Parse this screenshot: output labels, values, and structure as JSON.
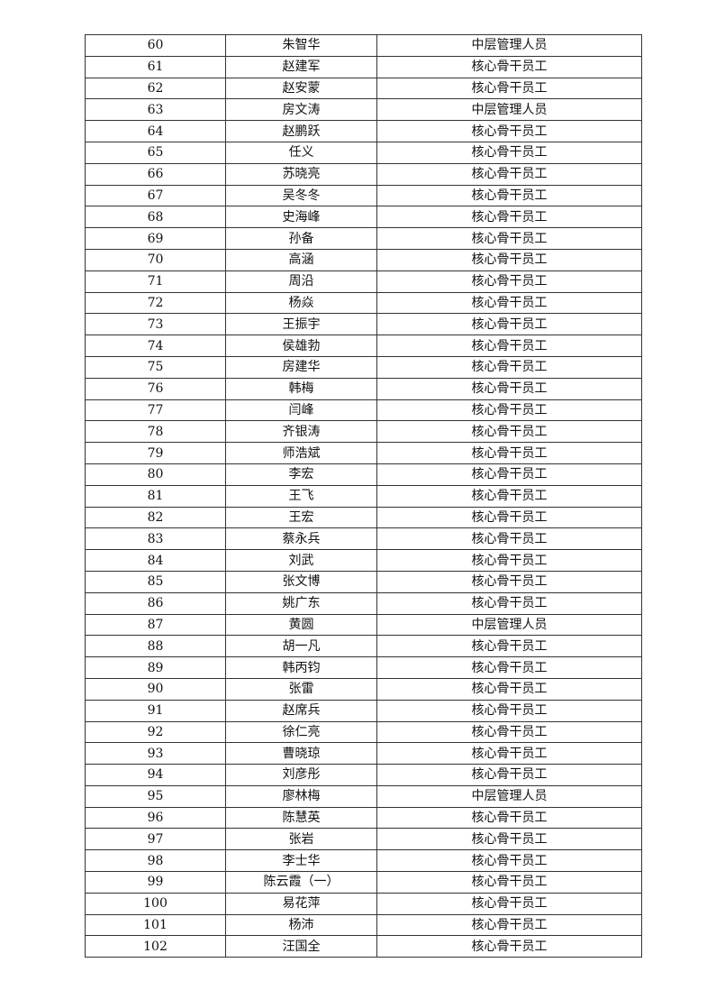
{
  "table": {
    "rows": [
      {
        "no": "60",
        "name": "朱智华",
        "role": "中层管理人员"
      },
      {
        "no": "61",
        "name": "赵建军",
        "role": "核心骨干员工"
      },
      {
        "no": "62",
        "name": "赵安蒙",
        "role": "核心骨干员工"
      },
      {
        "no": "63",
        "name": "房文涛",
        "role": "中层管理人员"
      },
      {
        "no": "64",
        "name": "赵鹏跃",
        "role": "核心骨干员工"
      },
      {
        "no": "65",
        "name": "任义",
        "role": "核心骨干员工"
      },
      {
        "no": "66",
        "name": "苏晓亮",
        "role": "核心骨干员工"
      },
      {
        "no": "67",
        "name": "吴冬冬",
        "role": "核心骨干员工"
      },
      {
        "no": "68",
        "name": "史海峰",
        "role": "核心骨干员工"
      },
      {
        "no": "69",
        "name": "孙备",
        "role": "核心骨干员工"
      },
      {
        "no": "70",
        "name": "高涵",
        "role": "核心骨干员工"
      },
      {
        "no": "71",
        "name": "周沿",
        "role": "核心骨干员工"
      },
      {
        "no": "72",
        "name": "杨焱",
        "role": "核心骨干员工"
      },
      {
        "no": "73",
        "name": "王振宇",
        "role": "核心骨干员工"
      },
      {
        "no": "74",
        "name": "侯雄勃",
        "role": "核心骨干员工"
      },
      {
        "no": "75",
        "name": "房建华",
        "role": "核心骨干员工"
      },
      {
        "no": "76",
        "name": "韩梅",
        "role": "核心骨干员工"
      },
      {
        "no": "77",
        "name": "闫峰",
        "role": "核心骨干员工"
      },
      {
        "no": "78",
        "name": "齐银涛",
        "role": "核心骨干员工"
      },
      {
        "no": "79",
        "name": "师浩斌",
        "role": "核心骨干员工"
      },
      {
        "no": "80",
        "name": "李宏",
        "role": "核心骨干员工"
      },
      {
        "no": "81",
        "name": "王飞",
        "role": "核心骨干员工"
      },
      {
        "no": "82",
        "name": "王宏",
        "role": "核心骨干员工"
      },
      {
        "no": "83",
        "name": "蔡永兵",
        "role": "核心骨干员工"
      },
      {
        "no": "84",
        "name": "刘武",
        "role": "核心骨干员工"
      },
      {
        "no": "85",
        "name": "张文博",
        "role": "核心骨干员工"
      },
      {
        "no": "86",
        "name": "姚广东",
        "role": "核心骨干员工"
      },
      {
        "no": "87",
        "name": "黄圆",
        "role": "中层管理人员"
      },
      {
        "no": "88",
        "name": "胡一凡",
        "role": "核心骨干员工"
      },
      {
        "no": "89",
        "name": "韩丙钧",
        "role": "核心骨干员工"
      },
      {
        "no": "90",
        "name": "张雷",
        "role": "核心骨干员工"
      },
      {
        "no": "91",
        "name": "赵席兵",
        "role": "核心骨干员工"
      },
      {
        "no": "92",
        "name": "徐仁亮",
        "role": "核心骨干员工"
      },
      {
        "no": "93",
        "name": "曹晓琼",
        "role": "核心骨干员工"
      },
      {
        "no": "94",
        "name": "刘彦彤",
        "role": "核心骨干员工"
      },
      {
        "no": "95",
        "name": "廖林梅",
        "role": "中层管理人员"
      },
      {
        "no": "96",
        "name": "陈慧英",
        "role": "核心骨干员工"
      },
      {
        "no": "97",
        "name": "张岩",
        "role": "核心骨干员工"
      },
      {
        "no": "98",
        "name": "李士华",
        "role": "核心骨干员工"
      },
      {
        "no": "99",
        "name": "陈云霞（一）",
        "role": "核心骨干员工"
      },
      {
        "no": "100",
        "name": "易花萍",
        "role": "核心骨干员工"
      },
      {
        "no": "101",
        "name": "杨沛",
        "role": "核心骨干员工"
      },
      {
        "no": "102",
        "name": "汪国全",
        "role": "核心骨干员工"
      }
    ]
  }
}
